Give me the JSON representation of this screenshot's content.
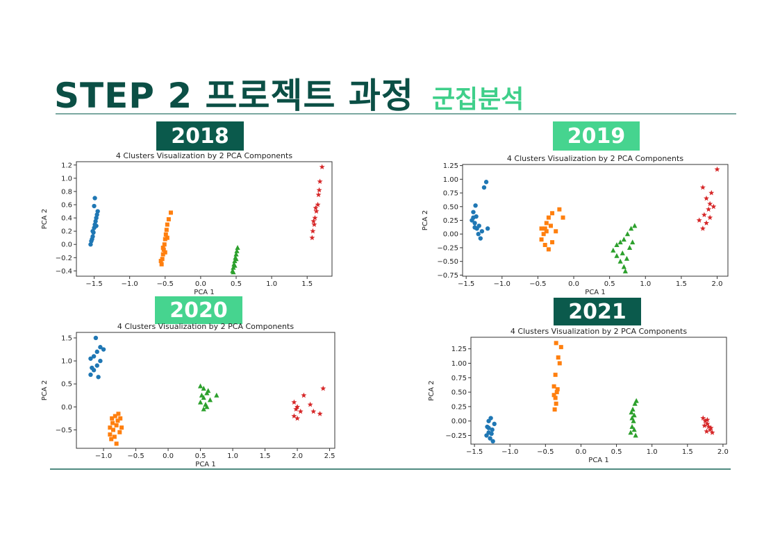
{
  "title": {
    "main": "STEP 2 프로젝트 과정",
    "sub": "군집분석"
  },
  "colors": {
    "title": "#0b4f45",
    "subtitle": "#3fcf8a",
    "badge_dark": "#0b5a4c",
    "badge_light": "#46d48f",
    "rule": "#7aa8a0"
  },
  "chart_data": [
    {
      "year_label": "2018",
      "type": "scatter",
      "title": "4 Clusters Visualization by 2 PCA Components",
      "xlabel": "PCA 1",
      "ylabel": "PCA 2",
      "xlim": [
        -1.75,
        1.85
      ],
      "ylim": [
        -0.48,
        1.25
      ],
      "xticks": [
        -1.5,
        -1.0,
        -0.5,
        0.0,
        0.5,
        1.0,
        1.5
      ],
      "xtick_labels": [
        "−1.5",
        "−1.0",
        "−0.5",
        "0.0",
        "0.5",
        "1.0",
        "1.5"
      ],
      "yticks": [
        -0.4,
        -0.2,
        0.0,
        0.2,
        0.4,
        0.6,
        0.8,
        1.0,
        1.2
      ],
      "ytick_labels": [
        "−0.4",
        "−0.2",
        "0.0",
        "0.2",
        "0.4",
        "0.6",
        "0.8",
        "1.0",
        "1.2"
      ],
      "grid": false,
      "legend": "none",
      "series": [
        {
          "marker": "circle",
          "color": "#1f77b4",
          "points": [
            [
              -1.55,
              0.0
            ],
            [
              -1.54,
              0.05
            ],
            [
              -1.52,
              0.12
            ],
            [
              -1.52,
              0.2
            ],
            [
              -1.5,
              0.25
            ],
            [
              -1.49,
              0.3
            ],
            [
              -1.48,
              0.35
            ],
            [
              -1.47,
              0.4
            ],
            [
              -1.46,
              0.45
            ],
            [
              -1.45,
              0.5
            ],
            [
              -1.5,
              0.58
            ],
            [
              -1.49,
              0.7
            ],
            [
              -1.51,
              0.18
            ],
            [
              -1.47,
              0.28
            ],
            [
              -1.53,
              0.08
            ]
          ]
        },
        {
          "marker": "square",
          "color": "#ff7f0e",
          "points": [
            [
              -0.55,
              -0.3
            ],
            [
              -0.54,
              -0.22
            ],
            [
              -0.53,
              -0.15
            ],
            [
              -0.52,
              -0.08
            ],
            [
              -0.51,
              0.0
            ],
            [
              -0.5,
              0.08
            ],
            [
              -0.49,
              0.15
            ],
            [
              -0.48,
              0.22
            ],
            [
              -0.47,
              0.3
            ],
            [
              -0.45,
              0.38
            ],
            [
              -0.42,
              0.48
            ],
            [
              -0.56,
              -0.25
            ],
            [
              -0.5,
              -0.12
            ],
            [
              -0.47,
              0.1
            ],
            [
              -0.53,
              -0.05
            ]
          ]
        },
        {
          "marker": "triangle",
          "color": "#2ca02c",
          "points": [
            [
              0.45,
              -0.4
            ],
            [
              0.46,
              -0.35
            ],
            [
              0.47,
              -0.3
            ],
            [
              0.48,
              -0.25
            ],
            [
              0.49,
              -0.2
            ],
            [
              0.5,
              -0.15
            ],
            [
              0.51,
              -0.1
            ],
            [
              0.52,
              -0.05
            ],
            [
              0.46,
              -0.42
            ],
            [
              0.48,
              -0.32
            ],
            [
              0.5,
              -0.22
            ]
          ]
        },
        {
          "marker": "star",
          "color": "#d62728",
          "points": [
            [
              1.57,
              0.1
            ],
            [
              1.58,
              0.2
            ],
            [
              1.6,
              0.3
            ],
            [
              1.61,
              0.4
            ],
            [
              1.63,
              0.5
            ],
            [
              1.65,
              0.6
            ],
            [
              1.66,
              0.75
            ],
            [
              1.67,
              0.82
            ],
            [
              1.68,
              0.95
            ],
            [
              1.71,
              1.17
            ],
            [
              1.59,
              0.35
            ],
            [
              1.62,
              0.55
            ]
          ]
        }
      ]
    },
    {
      "year_label": "2019",
      "type": "scatter",
      "title": "4 Clusters Visualization by 2 PCA Components",
      "xlabel": "PCA 1",
      "ylabel": "PCA 2",
      "xlim": [
        -1.55,
        2.15
      ],
      "ylim": [
        -0.77,
        1.27
      ],
      "xticks": [
        -1.5,
        -1.0,
        -0.5,
        0.0,
        0.5,
        1.0,
        1.5,
        2.0
      ],
      "xtick_labels": [
        "−1.5",
        "−1.0",
        "−0.5",
        "0.0",
        "0.5",
        "1.0",
        "1.5",
        "2.0"
      ],
      "yticks": [
        -0.75,
        -0.5,
        -0.25,
        0.0,
        0.25,
        0.5,
        0.75,
        1.0,
        1.25
      ],
      "ytick_labels": [
        "−0.75",
        "−0.50",
        "−0.25",
        "0.00",
        "0.25",
        "0.50",
        "0.75",
        "1.00",
        "1.25"
      ],
      "grid": false,
      "legend": "none",
      "series": [
        {
          "marker": "circle",
          "color": "#1f77b4",
          "points": [
            [
              -1.4,
              0.3
            ],
            [
              -1.38,
              0.2
            ],
            [
              -1.35,
              0.1
            ],
            [
              -1.33,
              0.0
            ],
            [
              -1.3,
              -0.08
            ],
            [
              -1.4,
              0.4
            ],
            [
              -1.37,
              0.52
            ],
            [
              -1.42,
              0.25
            ],
            [
              -1.36,
              0.32
            ],
            [
              -1.32,
              0.15
            ],
            [
              -1.25,
              0.85
            ],
            [
              -1.22,
              0.95
            ],
            [
              -1.2,
              0.1
            ],
            [
              -1.28,
              0.05
            ],
            [
              -1.38,
              0.12
            ]
          ]
        },
        {
          "marker": "square",
          "color": "#ff7f0e",
          "points": [
            [
              -0.45,
              -0.1
            ],
            [
              -0.42,
              0.0
            ],
            [
              -0.4,
              0.1
            ],
            [
              -0.38,
              0.2
            ],
            [
              -0.35,
              0.3
            ],
            [
              -0.3,
              0.38
            ],
            [
              -0.2,
              0.45
            ],
            [
              -0.15,
              0.3
            ],
            [
              -0.4,
              -0.2
            ],
            [
              -0.35,
              -0.28
            ],
            [
              -0.3,
              -0.15
            ],
            [
              -0.25,
              0.05
            ],
            [
              -0.38,
              0.05
            ],
            [
              -0.32,
              0.15
            ],
            [
              -0.45,
              0.1
            ]
          ]
        },
        {
          "marker": "triangle",
          "color": "#2ca02c",
          "points": [
            [
              0.55,
              -0.3
            ],
            [
              0.6,
              -0.4
            ],
            [
              0.65,
              -0.5
            ],
            [
              0.7,
              -0.6
            ],
            [
              0.72,
              -0.68
            ],
            [
              0.6,
              -0.2
            ],
            [
              0.7,
              -0.1
            ],
            [
              0.75,
              0.0
            ],
            [
              0.8,
              0.1
            ],
            [
              0.85,
              0.15
            ],
            [
              0.78,
              -0.25
            ],
            [
              0.68,
              -0.35
            ],
            [
              0.82,
              -0.15
            ],
            [
              0.65,
              -0.15
            ],
            [
              0.74,
              -0.45
            ]
          ]
        },
        {
          "marker": "star",
          "color": "#d62728",
          "points": [
            [
              1.8,
              0.1
            ],
            [
              1.85,
              0.2
            ],
            [
              1.82,
              0.35
            ],
            [
              1.88,
              0.45
            ],
            [
              1.9,
              0.55
            ],
            [
              1.95,
              0.5
            ],
            [
              1.85,
              0.65
            ],
            [
              1.92,
              0.75
            ],
            [
              1.8,
              0.85
            ],
            [
              2.0,
              1.18
            ],
            [
              1.9,
              0.3
            ],
            [
              1.75,
              0.25
            ]
          ]
        }
      ]
    },
    {
      "year_label": "2020",
      "type": "scatter",
      "title": "4 Clusters Visualization by 2 PCA Components",
      "xlabel": "PCA 1",
      "ylabel": "PCA 2",
      "xlim": [
        -1.42,
        2.58
      ],
      "ylim": [
        -0.9,
        1.62
      ],
      "xticks": [
        -1.0,
        -0.5,
        0.0,
        0.5,
        1.0,
        1.5,
        2.0,
        2.5
      ],
      "xtick_labels": [
        "−1.0",
        "−0.5",
        "0.0",
        "0.5",
        "1.0",
        "1.5",
        "2.0",
        "2.5"
      ],
      "yticks": [
        -0.5,
        0.0,
        0.5,
        1.0,
        1.5
      ],
      "ytick_labels": [
        "−0.5",
        "0.0",
        "0.5",
        "1.0",
        "1.5"
      ],
      "grid": false,
      "legend": "none",
      "series": [
        {
          "marker": "circle",
          "color": "#1f77b4",
          "points": [
            [
              -1.2,
              0.7
            ],
            [
              -1.15,
              0.8
            ],
            [
              -1.1,
              0.9
            ],
            [
              -1.05,
              1.0
            ],
            [
              -1.15,
              1.1
            ],
            [
              -1.1,
              1.2
            ],
            [
              -1.05,
              1.3
            ],
            [
              -1.0,
              1.25
            ],
            [
              -1.12,
              1.5
            ],
            [
              -1.2,
              1.05
            ],
            [
              -1.08,
              0.65
            ],
            [
              -1.18,
              0.85
            ]
          ]
        },
        {
          "marker": "square",
          "color": "#ff7f0e",
          "points": [
            [
              -0.9,
              -0.6
            ],
            [
              -0.85,
              -0.5
            ],
            [
              -0.8,
              -0.4
            ],
            [
              -0.78,
              -0.3
            ],
            [
              -0.82,
              -0.2
            ],
            [
              -0.88,
              -0.7
            ],
            [
              -0.75,
              -0.55
            ],
            [
              -0.72,
              -0.45
            ],
            [
              -0.8,
              -0.8
            ],
            [
              -0.86,
              -0.35
            ],
            [
              -0.77,
              -0.15
            ],
            [
              -0.9,
              -0.45
            ],
            [
              -0.83,
              -0.65
            ],
            [
              -0.74,
              -0.25
            ],
            [
              -0.87,
              -0.25
            ]
          ]
        },
        {
          "marker": "triangle",
          "color": "#2ca02c",
          "points": [
            [
              0.5,
              0.1
            ],
            [
              0.55,
              0.2
            ],
            [
              0.6,
              0.3
            ],
            [
              0.55,
              0.4
            ],
            [
              0.5,
              0.45
            ],
            [
              0.6,
              0.0
            ],
            [
              0.65,
              0.15
            ],
            [
              0.55,
              -0.05
            ],
            [
              0.75,
              0.25
            ],
            [
              0.62,
              0.35
            ],
            [
              0.52,
              0.25
            ],
            [
              0.58,
              0.05
            ]
          ]
        },
        {
          "marker": "star",
          "color": "#d62728",
          "points": [
            [
              1.95,
              0.1
            ],
            [
              2.0,
              0.0
            ],
            [
              2.05,
              -0.1
            ],
            [
              1.95,
              -0.2
            ],
            [
              2.1,
              0.25
            ],
            [
              2.2,
              0.05
            ],
            [
              2.25,
              -0.1
            ],
            [
              2.35,
              -0.15
            ],
            [
              2.4,
              0.4
            ],
            [
              2.0,
              -0.25
            ],
            [
              1.98,
              -0.05
            ]
          ]
        }
      ]
    },
    {
      "year_label": "2021",
      "type": "scatter",
      "title": "4 Clusters Visualization by 2 PCA Components",
      "xlabel": "PCA 1",
      "ylabel": "PCA 2",
      "xlim": [
        -1.55,
        2.05
      ],
      "ylim": [
        -0.4,
        1.45
      ],
      "xticks": [
        -1.5,
        -1.0,
        -0.5,
        0.0,
        0.5,
        1.0,
        1.5,
        2.0
      ],
      "xtick_labels": [
        "−1.5",
        "−1.0",
        "−0.5",
        "0.0",
        "0.5",
        "1.0",
        "1.5",
        "2.0"
      ],
      "yticks": [
        -0.25,
        0.0,
        0.25,
        0.5,
        0.75,
        1.0,
        1.25
      ],
      "ytick_labels": [
        "−0.25",
        "0.00",
        "0.25",
        "0.50",
        "0.75",
        "1.00",
        "1.25"
      ],
      "grid": false,
      "legend": "none",
      "series": [
        {
          "marker": "circle",
          "color": "#1f77b4",
          "points": [
            [
              -1.32,
              -0.1
            ],
            [
              -1.3,
              -0.2
            ],
            [
              -1.28,
              -0.3
            ],
            [
              -1.25,
              -0.15
            ],
            [
              -1.22,
              -0.05
            ],
            [
              -1.27,
              0.05
            ],
            [
              -1.3,
              0.0
            ],
            [
              -1.33,
              -0.25
            ],
            [
              -1.24,
              -0.35
            ],
            [
              -1.3,
              -0.12
            ],
            [
              -1.26,
              -0.22
            ]
          ]
        },
        {
          "marker": "square",
          "color": "#ff7f0e",
          "points": [
            [
              -0.37,
              0.2
            ],
            [
              -0.35,
              0.3
            ],
            [
              -0.36,
              0.4
            ],
            [
              -0.34,
              0.5
            ],
            [
              -0.33,
              0.55
            ],
            [
              -0.38,
              0.6
            ],
            [
              -0.36,
              0.8
            ],
            [
              -0.3,
              1.0
            ],
            [
              -0.32,
              1.1
            ],
            [
              -0.35,
              1.35
            ],
            [
              -0.28,
              1.28
            ],
            [
              -0.38,
              0.45
            ]
          ]
        },
        {
          "marker": "triangle",
          "color": "#2ca02c",
          "points": [
            [
              0.7,
              -0.2
            ],
            [
              0.72,
              -0.1
            ],
            [
              0.74,
              0.0
            ],
            [
              0.75,
              0.1
            ],
            [
              0.73,
              0.2
            ],
            [
              0.76,
              0.3
            ],
            [
              0.78,
              0.35
            ],
            [
              0.77,
              -0.25
            ],
            [
              0.72,
              0.05
            ],
            [
              0.75,
              -0.15
            ],
            [
              0.71,
              0.15
            ]
          ]
        },
        {
          "marker": "star",
          "color": "#d62728",
          "points": [
            [
              1.72,
              0.05
            ],
            [
              1.75,
              0.0
            ],
            [
              1.78,
              -0.05
            ],
            [
              1.8,
              -0.1
            ],
            [
              1.82,
              -0.15
            ],
            [
              1.85,
              -0.2
            ],
            [
              1.74,
              -0.08
            ],
            [
              1.78,
              0.02
            ],
            [
              1.83,
              -0.12
            ],
            [
              1.77,
              -0.18
            ]
          ]
        }
      ]
    }
  ]
}
